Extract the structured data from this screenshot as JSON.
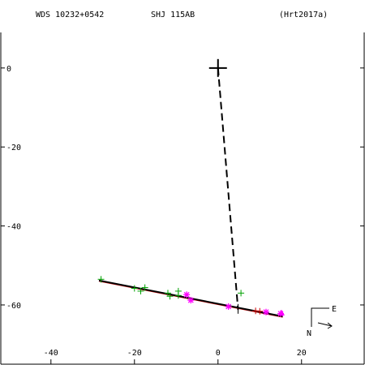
{
  "header": {
    "wds": "WDS 10232+0542",
    "discoverer": "SHJ 115AB",
    "reference": "(Hrt2017a)"
  },
  "compass": {
    "east_label": "E",
    "north_label": "N"
  },
  "chart_data": {
    "type": "scatter",
    "xlim": [
      -52,
      35
    ],
    "ylim": [
      -75,
      9
    ],
    "x_ticks": [
      -40,
      -20,
      0,
      20
    ],
    "y_ticks": [
      0,
      -20,
      -40,
      -60
    ],
    "primary": {
      "x": 0,
      "y": 0
    },
    "fit_line": {
      "x1": -28.5,
      "y1": -53.8,
      "x2": 15.5,
      "y2": -62.9
    },
    "projection_line": {
      "x1": 0,
      "y1": 0,
      "x2": 4.8,
      "y2": -61.2
    },
    "tick_mark": {
      "x": 4.8,
      "y": -61.2
    },
    "series": [
      {
        "marker": "plus",
        "color": "#00a000",
        "points": [
          [
            -28.0,
            -53.5
          ],
          [
            -20.0,
            -55.8
          ],
          [
            -18.5,
            -56.5
          ],
          [
            -17.5,
            -55.6
          ],
          [
            -12.0,
            -57.0
          ],
          [
            -11.5,
            -57.8
          ],
          [
            -9.5,
            -56.5
          ],
          [
            -9.5,
            -57.6
          ],
          [
            5.5,
            -57.0
          ]
        ]
      },
      {
        "marker": "plus",
        "color": "#cc0000",
        "points": [
          [
            9.0,
            -61.5
          ],
          [
            10.0,
            -61.6
          ]
        ]
      },
      {
        "marker": "asterisk",
        "color": "#ff00ff",
        "points": [
          [
            -7.5,
            -57.4
          ],
          [
            -6.5,
            -58.8
          ],
          [
            2.5,
            -60.4
          ],
          [
            11.5,
            -61.8
          ],
          [
            15.0,
            -62.2
          ]
        ]
      },
      {
        "marker": "triangle",
        "color": "#ff00ff",
        "points": [
          [
            15.2,
            -62.0
          ]
        ]
      }
    ]
  }
}
